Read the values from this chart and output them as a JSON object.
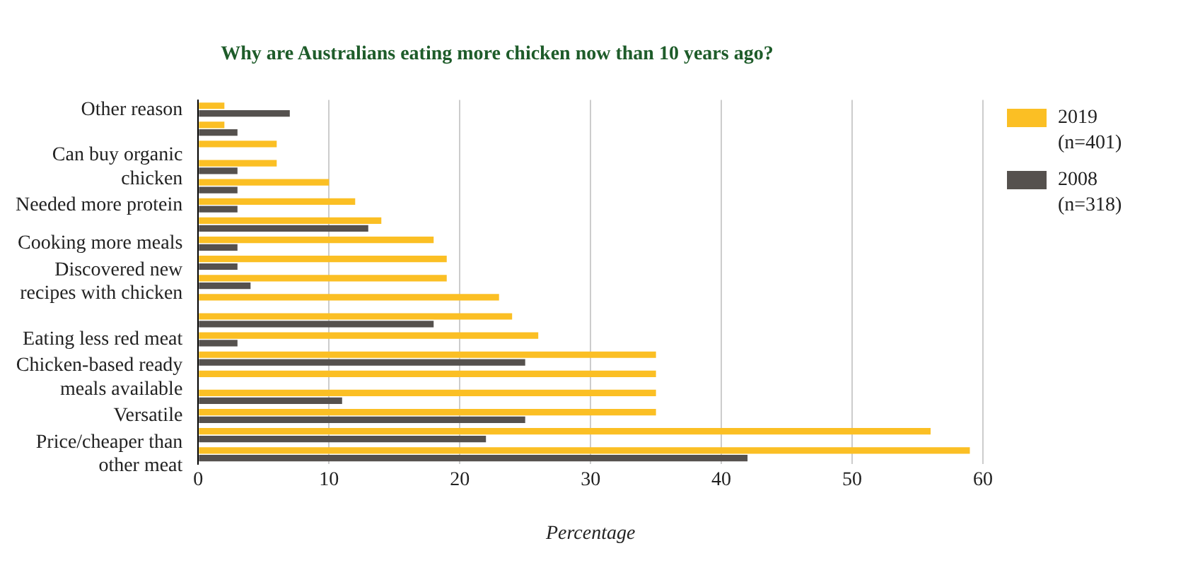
{
  "chart_data": {
    "type": "bar",
    "orientation": "horizontal",
    "title": "Why are Australians eating more chicken now than 10 years ago?",
    "xlabel": "Percentage",
    "categories": [
      "Other reason",
      null,
      null,
      "Can buy organic chicken",
      null,
      "Needed more protein",
      null,
      "Cooking more meals",
      null,
      "Discovered new recipes with chicken",
      null,
      null,
      "Eating less red meat",
      null,
      "Chicken-based ready meals available",
      null,
      "Versatile",
      null,
      "Price/cheaper than other meat"
    ],
    "series": [
      {
        "name": "2019 (n=401)",
        "color": "#fbbf24",
        "values": [
          2,
          2,
          6,
          6,
          10,
          12,
          14,
          18,
          19,
          19,
          23,
          24,
          26,
          35,
          35,
          35,
          35,
          56,
          59
        ]
      },
      {
        "name": "2008 (n=318)",
        "color": "#55514e",
        "values": [
          7,
          3,
          0,
          3,
          3,
          3,
          13,
          3,
          3,
          4,
          0,
          18,
          3,
          25,
          0,
          11,
          25,
          22,
          42
        ]
      }
    ],
    "xlim": [
      0,
      60
    ],
    "xticks": [
      0,
      10,
      20,
      30,
      40,
      50,
      60
    ],
    "grid": "x",
    "legend": "right"
  }
}
